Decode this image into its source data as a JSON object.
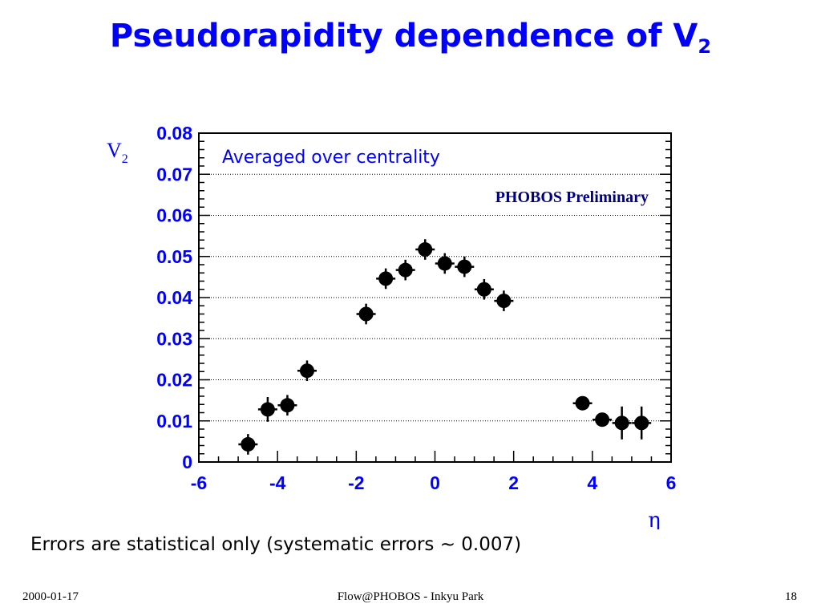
{
  "slide": {
    "title_main": "Pseudorapidity dependence of V",
    "title_sub": "2",
    "note": "Errors are statistical only  (systematic errors ~ 0.007)",
    "footer_date": "2000-01-17",
    "footer_center": "Flow@PHOBOS - Inkyu Park",
    "footer_page": "18"
  },
  "chart_data": {
    "type": "scatter",
    "ylabel_main": "V",
    "ylabel_sub": "2",
    "xlabel": "η",
    "annotation_1": "Averaged over centrality",
    "annotation_2": "PHOBOS Preliminary",
    "xlim": [
      -6,
      6
    ],
    "ylim": [
      0,
      0.08
    ],
    "x_ticks": [
      "-6",
      "-4",
      "-2",
      "0",
      "2",
      "4",
      "6"
    ],
    "y_ticks": [
      "0",
      "0.01",
      "0.02",
      "0.03",
      "0.04",
      "0.05",
      "0.06",
      "0.07",
      "0.08"
    ],
    "grid": "horizontal dotted",
    "colors": {
      "axis_labels": "#0000ff",
      "annotation_1": "#0000ff",
      "annotation_2": "#000080",
      "markers": "#000000"
    },
    "series": [
      {
        "x": [
          -4.75,
          -4.25,
          -3.75,
          -3.25,
          -1.75,
          -1.25,
          -0.75,
          -0.25,
          0.25,
          0.75,
          1.25,
          1.75,
          3.75,
          4.25,
          4.75,
          5.25
        ],
        "y": [
          0.0043,
          0.0128,
          0.0138,
          0.0222,
          0.036,
          0.0446,
          0.0467,
          0.0517,
          0.0483,
          0.0475,
          0.042,
          0.0392,
          0.0143,
          0.0103,
          0.0095,
          0.0095
        ],
        "err": [
          0.0025,
          0.003,
          0.0025,
          0.0025,
          0.0025,
          0.0025,
          0.0025,
          0.0025,
          0.0025,
          0.0025,
          0.0025,
          0.0025,
          0.0015,
          0.0015,
          0.004,
          0.004
        ]
      }
    ]
  }
}
